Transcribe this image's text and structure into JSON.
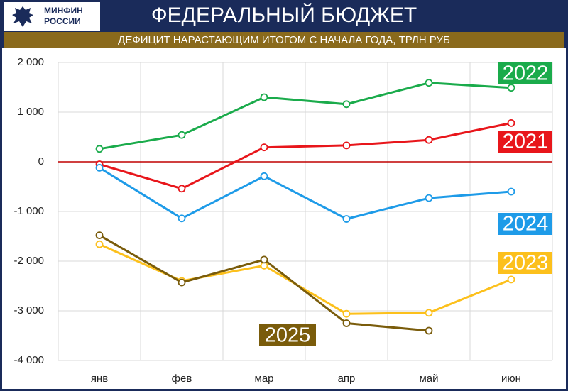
{
  "header": {
    "logo": [
      "МИНФИН",
      "РОССИИ"
    ]
  },
  "chart_data": {
    "type": "line",
    "title": "ФЕДЕРАЛЬНЫЙ БЮДЖЕТ",
    "subtitle": "ДЕФИЦИТ НАРАСТАЮЩИМ ИТОГОМ С НАЧАЛА ГОДА, ТРЛН РУБ",
    "categories": [
      "янв",
      "фев",
      "мар",
      "апр",
      "май",
      "июн"
    ],
    "series": [
      {
        "name": "2022",
        "color": "#1aab4b",
        "values": [
          260,
          540,
          1300,
          1160,
          1590,
          1490
        ]
      },
      {
        "name": "2021",
        "color": "#e8161b",
        "values": [
          -50,
          -540,
          290,
          330,
          440,
          780
        ]
      },
      {
        "name": "2024",
        "color": "#1e9be8",
        "values": [
          -120,
          -1140,
          -290,
          -1150,
          -730,
          -600
        ]
      },
      {
        "name": "2023",
        "color": "#fcc01c",
        "values": [
          -1660,
          -2400,
          -2090,
          -3060,
          -3040,
          -2370
        ]
      },
      {
        "name": "2025",
        "color": "#7a5c0b",
        "values": [
          -1480,
          -2430,
          -1970,
          -3250,
          -3400,
          null
        ]
      }
    ],
    "ylim": [
      -4000,
      2000
    ],
    "yticks": [
      {
        "value": -4000,
        "label": "-4 000"
      },
      {
        "value": -3000,
        "label": "-3 000"
      },
      {
        "value": -2000,
        "label": "-2 000"
      },
      {
        "value": -1000,
        "label": "-1 000"
      },
      0,
      {
        "value": 1000,
        "label": "1 000"
      },
      {
        "value": 2000,
        "label": "2 000"
      }
    ],
    "grid": true
  }
}
